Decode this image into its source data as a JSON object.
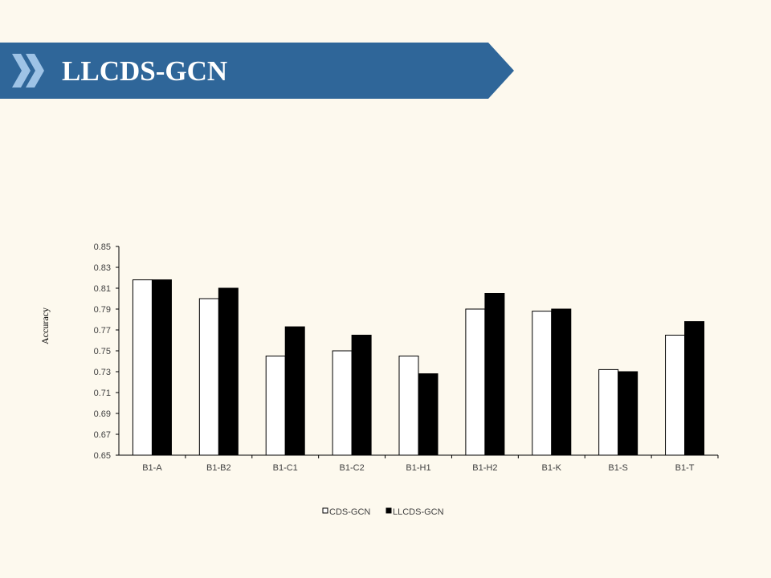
{
  "slide": {
    "title": "LLCDS-GCN",
    "banner_color": "#2f6699",
    "chevron_color": "#9ec3e6",
    "background": "#fdf9ee"
  },
  "chart_data": {
    "type": "bar",
    "title": "",
    "xlabel": "",
    "ylabel": "Accuracy",
    "ylim": [
      0.65,
      0.85
    ],
    "yticks": [
      "0.65",
      "0.67",
      "0.69",
      "0.71",
      "0.73",
      "0.75",
      "0.77",
      "0.79",
      "0.81",
      "0.83",
      "0.85"
    ],
    "categories": [
      "B1-A",
      "B1-B2",
      "B1-C1",
      "B1-C2",
      "B1-H1",
      "B1-H2",
      "B1-K",
      "B1-S",
      "B1-T"
    ],
    "series": [
      {
        "name": "CDS-GCN",
        "color": "#ffffff",
        "stroke": "#000000",
        "values": [
          0.818,
          0.8,
          0.745,
          0.75,
          0.745,
          0.79,
          0.788,
          0.732,
          0.765
        ]
      },
      {
        "name": "LLCDS-GCN",
        "color": "#000000",
        "stroke": "#000000",
        "values": [
          0.818,
          0.81,
          0.773,
          0.765,
          0.728,
          0.805,
          0.79,
          0.73,
          0.778
        ]
      }
    ],
    "grid": false,
    "legend_position": "bottom"
  }
}
